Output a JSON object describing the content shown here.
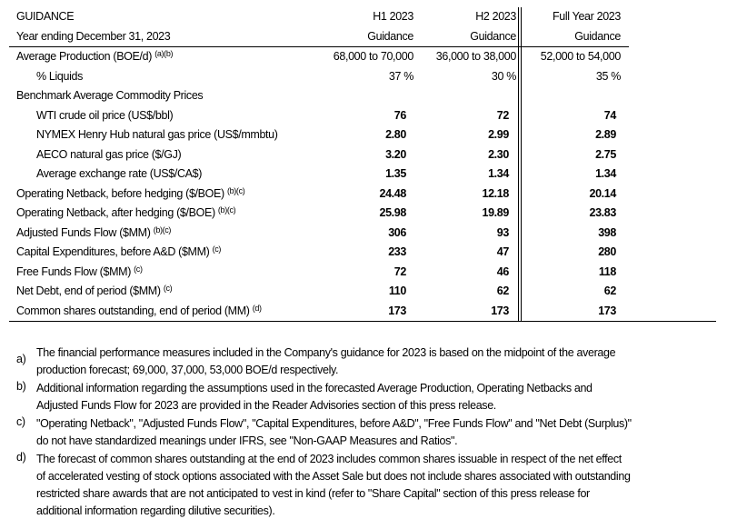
{
  "header": {
    "title": "GUIDANCE",
    "subtitle": "Year ending December 31, 2023",
    "columns": [
      {
        "period": "H1 2023",
        "label": "Guidance"
      },
      {
        "period": "H2 2023",
        "label": "Guidance"
      },
      {
        "period": "Full Year 2023",
        "label": "Guidance"
      }
    ]
  },
  "rows": [
    {
      "label": "Average Production (BOE/d)",
      "note": "(a)(b)",
      "values": [
        "68,000 to 70,000",
        "36,000 to 38,000",
        "52,000 to 54,000"
      ]
    },
    {
      "label": "% Liquids",
      "values": [
        "37 %",
        "30 %",
        "35 %"
      ]
    },
    {
      "label": "Benchmark Average Commodity Prices"
    },
    {
      "label": "WTI crude oil price (US$/bbl)",
      "values": [
        "76",
        "72",
        "74"
      ]
    },
    {
      "label": "NYMEX Henry Hub natural gas price (US$/mmbtu)",
      "values": [
        "2.80",
        "2.99",
        "2.89"
      ]
    },
    {
      "label": "AECO natural gas price ($/GJ)",
      "values": [
        "3.20",
        "2.30",
        "2.75"
      ]
    },
    {
      "label": "Average exchange rate (US$/CA$)",
      "values": [
        "1.35",
        "1.34",
        "1.34"
      ]
    },
    {
      "label": "Operating Netback, before hedging ($/BOE)",
      "note": "(b)(c)",
      "values": [
        "24.48",
        "12.18",
        "20.14"
      ]
    },
    {
      "label": "Operating Netback, after hedging ($/BOE)",
      "note": "(b)(c)",
      "values": [
        "25.98",
        "19.89",
        "23.83"
      ]
    },
    {
      "label": "Adjusted Funds Flow ($MM)",
      "note": "(b)(c)",
      "values": [
        "306",
        "93",
        "398"
      ]
    },
    {
      "label": "Capital Expenditures, before A&D ($MM)",
      "note": "(c)",
      "values": [
        "233",
        "47",
        "280"
      ]
    },
    {
      "label": "Free Funds Flow ($MM)",
      "note": "(c)",
      "values": [
        "72",
        "46",
        "118"
      ]
    },
    {
      "label": "Net Debt, end of period ($MM)",
      "note": "(c)",
      "values": [
        "110",
        "62",
        "62"
      ]
    },
    {
      "label": "Common shares outstanding, end of period (MM)",
      "note": "(d)",
      "values": [
        "173",
        "173",
        "173"
      ]
    }
  ],
  "footnotes": [
    {
      "letter": "a)",
      "lines": [
        "The financial performance measures included in the Company's guidance for 2023 is based on the midpoint of the average",
        "production forecast; 69,000, 37,000, 53,000 BOE/d respectively."
      ]
    },
    {
      "letter": "b)",
      "lines": [
        "Additional information regarding the assumptions used in the forecasted Average Production, Operating Netbacks and",
        "Adjusted Funds Flow for 2023 are provided in the Reader Advisories section of this press release."
      ]
    },
    {
      "letter": "c)",
      "lines": [
        "\"Operating Netback\", \"Adjusted Funds Flow\", \"Capital Expenditures, before A&D\", \"Free Funds Flow\" and \"Net Debt (Surplus)\"",
        "do not have standardized meanings under IFRS, see \"Non-GAAP Measures and Ratios\"."
      ]
    },
    {
      "letter": "d)",
      "lines": [
        "The forecast of common shares outstanding at the end of 2023 includes common shares issuable in respect of the net effect",
        "of accelerated vesting of stock options associated with the Asset Sale but does not include shares associated with outstanding",
        "restricted share awards that are not anticipated to vest in kind (refer to \"Share Capital\" section of this press release for",
        "additional information regarding dilutive securities)."
      ]
    }
  ]
}
